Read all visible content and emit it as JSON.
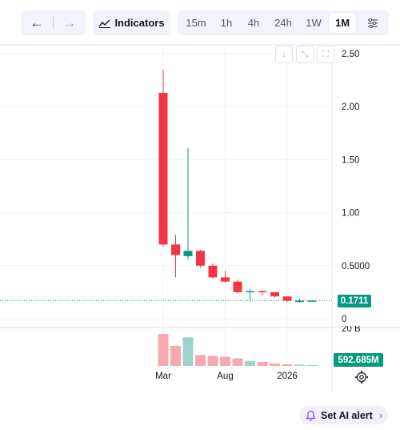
{
  "toolbar": {
    "indicators_label": "Indicators",
    "timeframes": [
      "15m",
      "1h",
      "4h",
      "24h",
      "1W",
      "1M"
    ],
    "active_timeframe": "1M"
  },
  "price_axis": {
    "labels": [
      "2.50",
      "2.00",
      "1.50",
      "1.00",
      "0.5000",
      "0"
    ]
  },
  "time_axis": {
    "labels": [
      "Mar",
      "Aug",
      "2026"
    ]
  },
  "last_price": "0.1711",
  "volume": {
    "top_label": "20 B",
    "last_label": "592.685M"
  },
  "alert_label": "Set AI alert",
  "colors": {
    "up": "#089981",
    "down": "#f23645",
    "up_vol": "#9ed3cc",
    "down_vol": "#f7a9b0"
  },
  "chart_data": {
    "type": "candlestick",
    "y_range": [
      0,
      2.5
    ],
    "x_ticks": [
      "Mar",
      "Aug",
      "2026"
    ],
    "candles": [
      {
        "o": 2.13,
        "h": 2.35,
        "l": 0.68,
        "c": 0.7
      },
      {
        "o": 0.7,
        "h": 0.79,
        "l": 0.39,
        "c": 0.6
      },
      {
        "o": 0.59,
        "h": 1.61,
        "l": 0.56,
        "c": 0.64
      },
      {
        "o": 0.64,
        "h": 0.65,
        "l": 0.48,
        "c": 0.5
      },
      {
        "o": 0.5,
        "h": 0.52,
        "l": 0.38,
        "c": 0.39
      },
      {
        "o": 0.39,
        "h": 0.45,
        "l": 0.34,
        "c": 0.35
      },
      {
        "o": 0.35,
        "h": 0.37,
        "l": 0.24,
        "c": 0.25
      },
      {
        "o": 0.25,
        "h": 0.28,
        "l": 0.16,
        "c": 0.26
      },
      {
        "o": 0.26,
        "h": 0.27,
        "l": 0.22,
        "c": 0.25
      },
      {
        "o": 0.25,
        "h": 0.25,
        "l": 0.2,
        "c": 0.21
      },
      {
        "o": 0.21,
        "h": 0.21,
        "l": 0.16,
        "c": 0.17
      },
      {
        "o": 0.16,
        "h": 0.19,
        "l": 0.15,
        "c": 0.17
      },
      {
        "o": 0.17,
        "h": 0.17,
        "l": 0.17,
        "c": 0.171
      }
    ],
    "volumes_b": [
      19,
      12,
      17,
      6.5,
      6,
      5.5,
      4.5,
      3,
      2.4,
      1.5,
      1.0,
      0.8,
      0.6
    ]
  }
}
